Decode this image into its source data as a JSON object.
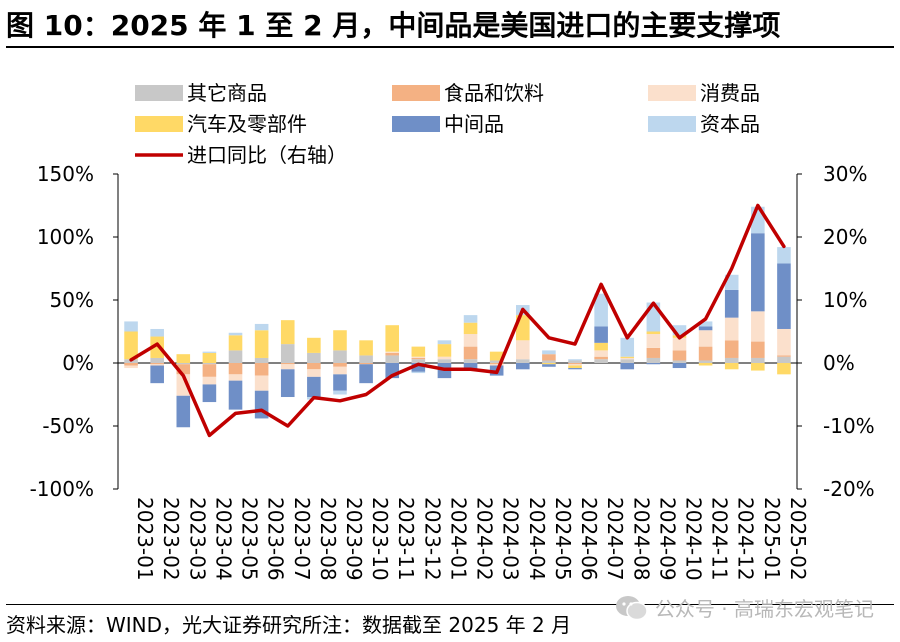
{
  "title": "图 10：2025 年 1 至 2 月，中间品是美国进口的主要支撑项",
  "source": "资料来源：WIND，光大证券研究所注：数据截至 2025 年 2 月",
  "watermark": "公众号 · 高瑞东宏观笔记",
  "chart_data": {
    "type": "bar",
    "stacked": true,
    "categories": [
      "2023-01",
      "2023-02",
      "2023-03",
      "2023-04",
      "2023-05",
      "2023-06",
      "2023-07",
      "2023-08",
      "2023-09",
      "2023-10",
      "2023-11",
      "2023-12",
      "2024-01",
      "2024-02",
      "2024-03",
      "2024-04",
      "2024-05",
      "2024-06",
      "2024-07",
      "2024-08",
      "2024-09",
      "2024-10",
      "2024-11",
      "2024-12",
      "2025-01",
      "2025-02"
    ],
    "series": [
      {
        "name": "其它商品",
        "color": "#c8c8c8",
        "values": [
          3,
          4,
          -1,
          -1,
          10,
          4,
          15,
          8,
          10,
          6,
          6,
          3,
          3,
          3,
          2,
          3,
          2,
          2,
          3,
          3,
          4,
          2,
          2,
          4,
          4,
          5
        ]
      },
      {
        "name": "食品和饮料",
        "color": "#f4b183",
        "values": [
          -2,
          -1,
          -8,
          -10,
          -9,
          -10,
          -1,
          -5,
          -3,
          -1,
          2,
          1,
          0,
          10,
          -1,
          0,
          5,
          -1,
          2,
          0,
          8,
          8,
          11,
          14,
          13,
          1
        ]
      },
      {
        "name": "消费品",
        "color": "#fbe0cc",
        "values": [
          -2,
          -1,
          -17,
          -6,
          -5,
          -12,
          -4,
          -6,
          -6,
          0,
          1,
          1,
          2,
          10,
          -1,
          15,
          0,
          -1,
          5,
          1,
          11,
          10,
          13,
          18,
          24,
          21
        ]
      },
      {
        "name": "汽车及零部件",
        "color": "#ffd966",
        "values": [
          22,
          17,
          7,
          8,
          12,
          22,
          19,
          12,
          16,
          12,
          21,
          8,
          10,
          9,
          7,
          20,
          -1,
          -2,
          6,
          1,
          2,
          2,
          -2,
          -5,
          -6,
          -9
        ]
      },
      {
        "name": "中间品",
        "color": "#6f8fc7",
        "values": [
          0,
          -14,
          -25,
          -14,
          -23,
          -22,
          -22,
          -16,
          -13,
          -15,
          -12,
          -7,
          -12,
          -5,
          -8,
          -5,
          -2,
          -1,
          13,
          -5,
          -1,
          -4,
          3,
          22,
          62,
          52
        ]
      },
      {
        "name": "资本品",
        "color": "#bdd7ee",
        "values": [
          8,
          6,
          0,
          1,
          2,
          5,
          0,
          -2,
          -3,
          0,
          0,
          -1,
          3,
          6,
          0,
          8,
          3,
          1,
          26,
          15,
          23,
          8,
          4,
          12,
          21,
          13
        ]
      }
    ],
    "line": {
      "name": "进口同比（右轴）",
      "color": "#c00000",
      "values": [
        0.5,
        3,
        -2,
        -11.5,
        -8,
        -7.5,
        -10,
        -5.5,
        -6,
        -5,
        -2,
        -0.2,
        -1,
        -1,
        -1.5,
        8.5,
        4,
        3,
        12.5,
        4,
        9.5,
        4,
        7,
        15,
        25,
        18.5
      ]
    },
    "y_left": {
      "min": -100,
      "max": 150,
      "step": 50,
      "format": "percent"
    },
    "y_right": {
      "min": -20,
      "max": 30,
      "step": 10,
      "format": "percent"
    },
    "legend": {
      "position": "top-left",
      "columns": 3
    },
    "grid": false
  }
}
